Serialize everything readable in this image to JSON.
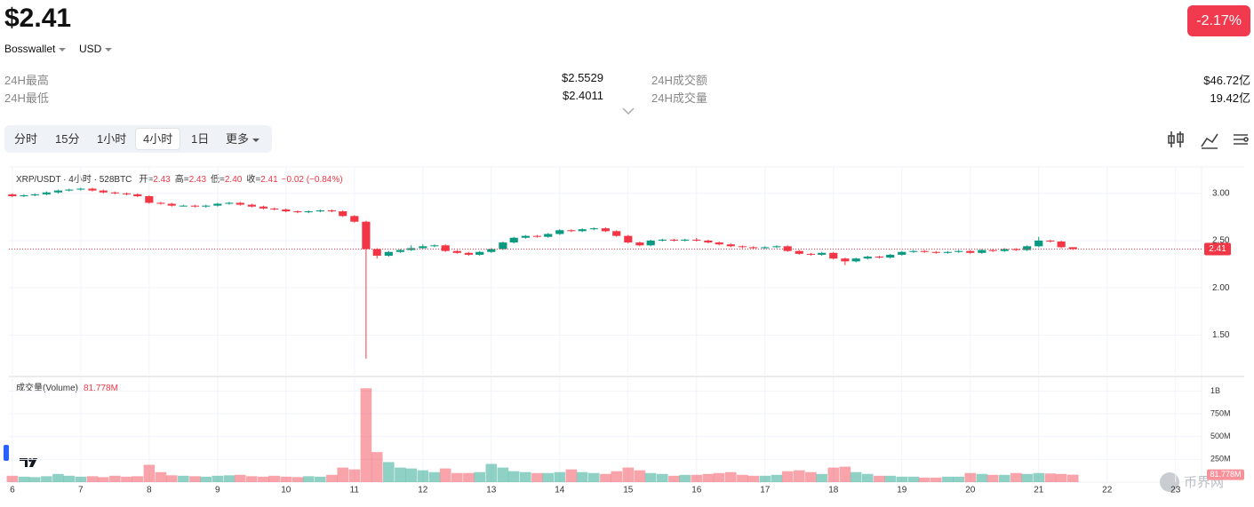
{
  "header": {
    "price": "$2.41",
    "change": "-2.17%",
    "exchange": "Bosswallet",
    "currency": "USD",
    "stats": [
      {
        "label": "24H最高",
        "value": "$2.5529"
      },
      {
        "label": "24H最低",
        "value": "$2.4011"
      },
      {
        "label": "24H成交额",
        "value": "$46.72亿"
      },
      {
        "label": "24H成交量",
        "value": "19.42亿"
      }
    ]
  },
  "tabs": {
    "items": [
      "分时",
      "15分",
      "1小时",
      "4小时",
      "1日",
      "更多"
    ],
    "selected": 3
  },
  "watermark": "币界网",
  "chart_data": [
    {
      "type": "candlestick",
      "legend": {
        "symbol": "XRP/USDT · 4小时 · 528BTC",
        "fields": [
          {
            "label": "开=",
            "value": "2.43"
          },
          {
            "label": "高=",
            "value": "2.43"
          },
          {
            "label": "低=",
            "value": "2.40"
          },
          {
            "label": "收=",
            "value": "2.41"
          }
        ],
        "change": "−0.02 (−0.84%)"
      },
      "up_color": "#089981",
      "down_color": "#f23645",
      "x": [
        6,
        6.17,
        6.33,
        6.5,
        6.67,
        6.83,
        7,
        7.17,
        7.33,
        7.5,
        7.67,
        7.83,
        8,
        8.17,
        8.33,
        8.5,
        8.67,
        8.83,
        9,
        9.17,
        9.33,
        9.5,
        9.67,
        9.83,
        10,
        10.17,
        10.33,
        10.5,
        10.67,
        10.83,
        11,
        11.17,
        11.33,
        11.5,
        11.67,
        11.83,
        12,
        12.17,
        12.33,
        12.5,
        12.67,
        12.83,
        13,
        13.17,
        13.33,
        13.5,
        13.67,
        13.83,
        14,
        14.17,
        14.33,
        14.5,
        14.67,
        14.83,
        15,
        15.17,
        15.33,
        15.5,
        15.67,
        15.83,
        16,
        16.17,
        16.33,
        16.5,
        16.67,
        16.83,
        17,
        17.17,
        17.33,
        17.5,
        17.67,
        17.83,
        18,
        18.17,
        18.33,
        18.5,
        18.67,
        18.83,
        19,
        19.17,
        19.33,
        19.5,
        19.67,
        19.83,
        20,
        20.17,
        20.33,
        20.5,
        20.67,
        20.83,
        21,
        21.17,
        21.33,
        21.5
      ],
      "open": [
        2.99,
        2.97,
        2.98,
        2.99,
        3.01,
        3.03,
        3.04,
        3.05,
        3.03,
        3.01,
        3.0,
        2.99,
        2.97,
        2.9,
        2.89,
        2.87,
        2.87,
        2.86,
        2.87,
        2.89,
        2.9,
        2.88,
        2.86,
        2.84,
        2.83,
        2.81,
        2.8,
        2.81,
        2.82,
        2.81,
        2.76,
        2.7,
        2.41,
        2.34,
        2.38,
        2.4,
        2.42,
        2.44,
        2.45,
        2.39,
        2.37,
        2.35,
        2.38,
        2.41,
        2.48,
        2.53,
        2.55,
        2.54,
        2.57,
        2.61,
        2.6,
        2.62,
        2.63,
        2.6,
        2.55,
        2.48,
        2.45,
        2.5,
        2.51,
        2.5,
        2.51,
        2.5,
        2.48,
        2.46,
        2.44,
        2.43,
        2.42,
        2.43,
        2.44,
        2.39,
        2.36,
        2.35,
        2.37,
        2.31,
        2.28,
        2.31,
        2.33,
        2.32,
        2.35,
        2.38,
        2.39,
        2.38,
        2.37,
        2.38,
        2.39,
        2.37,
        2.4,
        2.39,
        2.41,
        2.4,
        2.44,
        2.5,
        2.49,
        2.43
      ],
      "high": [
        3.0,
        2.99,
        3.0,
        3.02,
        3.04,
        3.05,
        3.06,
        3.06,
        3.04,
        3.02,
        3.01,
        3.0,
        2.98,
        2.91,
        2.9,
        2.88,
        2.88,
        2.88,
        2.9,
        2.91,
        2.91,
        2.89,
        2.87,
        2.85,
        2.84,
        2.82,
        2.82,
        2.83,
        2.83,
        2.82,
        2.77,
        2.71,
        2.42,
        2.39,
        2.41,
        2.45,
        2.46,
        2.46,
        2.46,
        2.4,
        2.38,
        2.39,
        2.42,
        2.49,
        2.54,
        2.56,
        2.56,
        2.58,
        2.62,
        2.62,
        2.63,
        2.64,
        2.64,
        2.61,
        2.56,
        2.49,
        2.51,
        2.52,
        2.52,
        2.52,
        2.53,
        2.51,
        2.49,
        2.47,
        2.45,
        2.44,
        2.44,
        2.45,
        2.45,
        2.4,
        2.37,
        2.38,
        2.38,
        2.32,
        2.32,
        2.34,
        2.34,
        2.36,
        2.39,
        2.4,
        2.4,
        2.39,
        2.39,
        2.4,
        2.4,
        2.41,
        2.41,
        2.42,
        2.42,
        2.45,
        2.54,
        2.51,
        2.5,
        2.43
      ],
      "low": [
        2.96,
        2.96,
        2.97,
        2.98,
        3.0,
        3.02,
        3.03,
        3.02,
        3.0,
        2.99,
        2.98,
        2.96,
        2.89,
        2.88,
        2.86,
        2.86,
        2.85,
        2.85,
        2.86,
        2.88,
        2.87,
        2.85,
        2.83,
        2.82,
        2.8,
        2.79,
        2.79,
        2.8,
        2.8,
        2.75,
        2.69,
        1.25,
        2.31,
        2.33,
        2.37,
        2.39,
        2.41,
        2.43,
        2.38,
        2.36,
        2.34,
        2.34,
        2.37,
        2.4,
        2.47,
        2.52,
        2.53,
        2.53,
        2.56,
        2.59,
        2.59,
        2.61,
        2.59,
        2.54,
        2.47,
        2.44,
        2.44,
        2.49,
        2.49,
        2.49,
        2.49,
        2.47,
        2.45,
        2.43,
        2.42,
        2.41,
        2.41,
        2.42,
        2.38,
        2.35,
        2.34,
        2.34,
        2.3,
        2.24,
        2.27,
        2.3,
        2.31,
        2.31,
        2.34,
        2.37,
        2.37,
        2.36,
        2.36,
        2.37,
        2.36,
        2.36,
        2.38,
        2.38,
        2.39,
        2.39,
        2.43,
        2.48,
        2.42,
        2.4
      ],
      "close": [
        2.97,
        2.98,
        2.99,
        3.01,
        3.03,
        3.04,
        3.05,
        3.03,
        3.01,
        3.0,
        2.99,
        2.97,
        2.9,
        2.89,
        2.87,
        2.87,
        2.86,
        2.87,
        2.89,
        2.9,
        2.88,
        2.86,
        2.84,
        2.83,
        2.81,
        2.8,
        2.81,
        2.82,
        2.81,
        2.76,
        2.7,
        2.41,
        2.34,
        2.38,
        2.4,
        2.42,
        2.44,
        2.45,
        2.39,
        2.37,
        2.35,
        2.38,
        2.41,
        2.48,
        2.53,
        2.55,
        2.54,
        2.57,
        2.61,
        2.6,
        2.62,
        2.63,
        2.6,
        2.55,
        2.48,
        2.45,
        2.5,
        2.51,
        2.5,
        2.51,
        2.5,
        2.48,
        2.46,
        2.44,
        2.43,
        2.42,
        2.43,
        2.44,
        2.39,
        2.36,
        2.35,
        2.37,
        2.31,
        2.28,
        2.31,
        2.33,
        2.32,
        2.35,
        2.38,
        2.39,
        2.38,
        2.37,
        2.38,
        2.39,
        2.37,
        2.4,
        2.39,
        2.41,
        2.4,
        2.44,
        2.5,
        2.49,
        2.43,
        2.41
      ],
      "xlim": [
        5.95,
        23.38
      ],
      "xticks": [
        6,
        7,
        8,
        9,
        10,
        11,
        12,
        13,
        14,
        15,
        16,
        17,
        18,
        19,
        20,
        21,
        22,
        23
      ],
      "ylim": [
        1.08,
        3.28
      ],
      "yticks": [
        {
          "value": 1.5,
          "label": "1.50"
        },
        {
          "value": 2,
          "label": "2.00"
        },
        {
          "value": 2.5,
          "label": "2.50"
        },
        {
          "value": 3,
          "label": "3.00"
        }
      ],
      "grid": true
    },
    {
      "type": "bar",
      "title": "成交量(Volume)",
      "last_value_label": "81.778M",
      "values": [
        70,
        60,
        55,
        65,
        90,
        70,
        60,
        65,
        55,
        70,
        60,
        65,
        190,
        110,
        75,
        70,
        65,
        60,
        70,
        75,
        80,
        65,
        60,
        70,
        60,
        55,
        65,
        60,
        80,
        160,
        140,
        1030,
        330,
        220,
        160,
        150,
        130,
        110,
        150,
        100,
        100,
        110,
        200,
        160,
        120,
        110,
        100,
        100,
        110,
        140,
        110,
        100,
        90,
        120,
        160,
        130,
        100,
        90,
        70,
        80,
        80,
        90,
        100,
        110,
        80,
        70,
        70,
        80,
        120,
        130,
        110,
        90,
        160,
        170,
        110,
        90,
        70,
        70,
        60,
        60,
        50,
        50,
        60,
        60,
        100,
        90,
        80,
        80,
        100,
        90,
        100,
        95,
        90,
        81.778
      ],
      "ylim": [
        0,
        1150
      ],
      "yticks": [
        {
          "value": 250,
          "label": "250M"
        },
        {
          "value": 500,
          "label": "500M"
        },
        {
          "value": 750,
          "label": "750M"
        },
        {
          "value": 1000,
          "label": "1B"
        }
      ],
      "grid": true
    }
  ]
}
